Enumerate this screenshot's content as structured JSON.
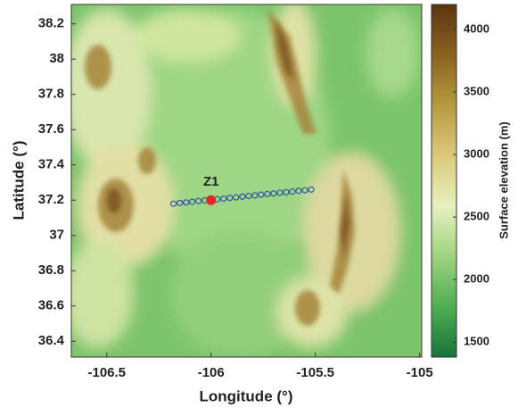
{
  "chart_data": {
    "type": "map",
    "xlabel": "Longitude (°)",
    "ylabel": "Latitude (°)",
    "xlim": [
      -106.67,
      -104.99
    ],
    "ylim": [
      36.31,
      38.31
    ],
    "xticks": [
      -106.5,
      -106,
      -105.5,
      -105
    ],
    "yticks": [
      36.4,
      36.6,
      36.8,
      37,
      37.2,
      37.4,
      37.6,
      37.8,
      38,
      38.2
    ],
    "colorbar": {
      "label": "Surface elevation (m)",
      "lim": [
        1380,
        4200
      ],
      "ticks": [
        1500,
        2000,
        2500,
        3000,
        3500,
        4000
      ],
      "colormap": [
        "#17743a",
        "#4fae52",
        "#9fd37f",
        "#e6f0c0",
        "#ddc97c",
        "#b59a3f",
        "#8a6220",
        "#5e3410"
      ]
    },
    "series": [
      {
        "color": "#2f56a8",
        "x": [
          -106.18,
          -106.15,
          -106.12,
          -106.09,
          -106.06,
          -106.03,
          -106.0,
          -105.97,
          -105.94,
          -105.91,
          -105.88,
          -105.85,
          -105.82,
          -105.79,
          -105.76,
          -105.73,
          -105.7,
          -105.67,
          -105.64,
          -105.61,
          -105.58,
          -105.55,
          -105.52
        ],
        "y": [
          37.18,
          37.184,
          37.187,
          37.191,
          37.195,
          37.198,
          37.202,
          37.205,
          37.209,
          37.213,
          37.216,
          37.22,
          37.224,
          37.227,
          37.231,
          37.235,
          37.238,
          37.242,
          37.245,
          37.249,
          37.253,
          37.256,
          37.26
        ]
      }
    ],
    "marker": {
      "label": "Z1",
      "x": -106.0,
      "y": 37.2,
      "color": "#e8232a"
    }
  }
}
